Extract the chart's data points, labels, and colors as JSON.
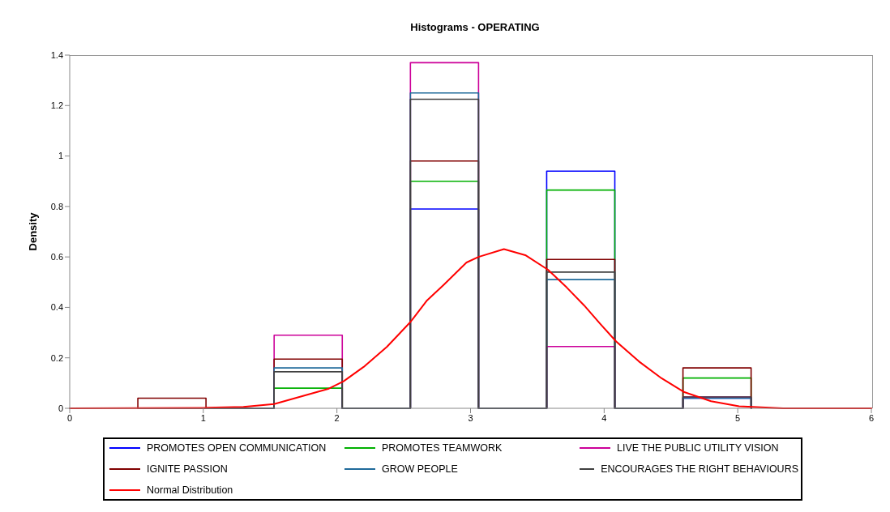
{
  "chart_data": {
    "type": "histogram",
    "title": "Histograms - OPERATING",
    "ylabel": "Density",
    "bins": [
      0.51,
      1.02,
      1.53,
      2.04,
      2.55,
      3.06,
      3.57,
      4.08,
      4.59,
      5.1
    ],
    "series": [
      {
        "name": "PROMOTES OPEN COMMUNICATION",
        "color": "#0000ff",
        "values": [
          0,
          0,
          null,
          0,
          0.79,
          0,
          0.94,
          0,
          0.04
        ]
      },
      {
        "name": "PROMOTES TEAMWORK",
        "color": "#00b000",
        "values": [
          0,
          0,
          0.08,
          0,
          0.9,
          0,
          0.865,
          0,
          0.12
        ]
      },
      {
        "name": "LIVE THE PUBLIC UTILITY VISION",
        "color": "#cc0099",
        "values": [
          0,
          0,
          0.29,
          0,
          1.37,
          0,
          0.245,
          0,
          0.045
        ]
      },
      {
        "name": "IGNITE PASSION",
        "color": "#800000",
        "values": [
          0.04,
          0,
          0.195,
          0,
          0.98,
          0,
          0.59,
          0,
          0.16
        ]
      },
      {
        "name": "GROW PEOPLE",
        "color": "#1f6a9a",
        "values": [
          0,
          0,
          0.16,
          0,
          1.25,
          0,
          0.51,
          0,
          0.04
        ]
      },
      {
        "name": "ENCOURAGES THE RIGHT BEHAVIOURS",
        "color": "#404040",
        "values": [
          0,
          0,
          0.145,
          0,
          1.225,
          0,
          0.54,
          0,
          0.045
        ]
      },
      {
        "name": "Normal Distribution",
        "type": "line",
        "color": "#ff0000",
        "x": [
          0,
          1.0,
          1.3,
          1.53,
          1.94,
          2.05,
          2.2,
          2.375,
          2.55,
          2.675,
          2.8,
          2.97,
          3.06,
          3.25,
          3.41,
          3.58,
          3.72,
          3.85,
          3.97,
          4.09,
          4.26,
          4.43,
          4.6,
          4.8,
          5.01,
          5.34,
          6
        ],
        "values": [
          0,
          0.002,
          0.006,
          0.017,
          0.078,
          0.107,
          0.164,
          0.244,
          0.342,
          0.428,
          0.49,
          0.578,
          0.6,
          0.631,
          0.607,
          0.549,
          0.479,
          0.408,
          0.335,
          0.265,
          0.186,
          0.119,
          0.064,
          0.028,
          0.008,
          0,
          0
        ]
      }
    ],
    "xlim": [
      0,
      6
    ],
    "xticks": [
      0,
      1,
      2,
      3,
      4,
      5,
      6
    ],
    "ylim": [
      0,
      1.4
    ],
    "yticks": [
      0,
      0.2,
      0.4,
      0.6,
      0.8,
      1,
      1.2,
      1.4
    ],
    "legend": "bottom"
  }
}
